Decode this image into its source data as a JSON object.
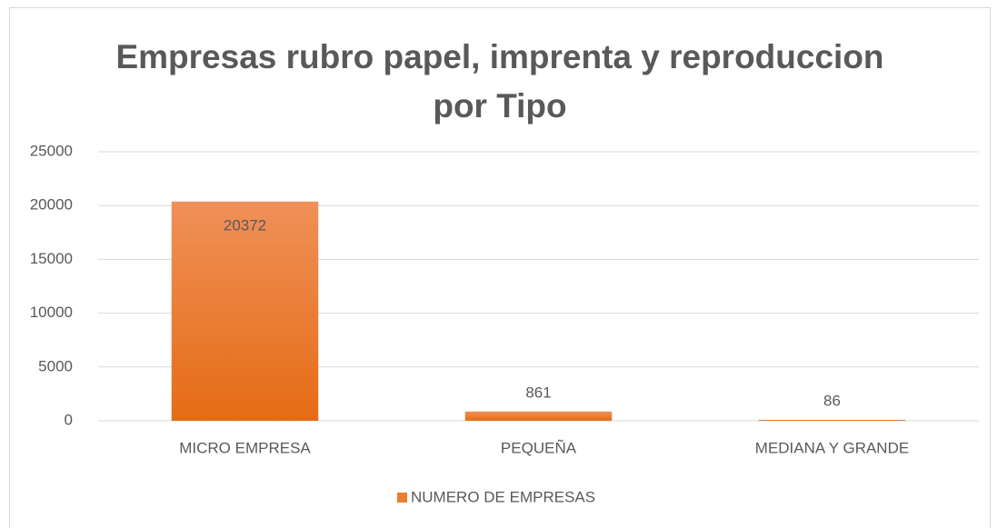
{
  "chart_data": {
    "type": "bar",
    "title": "Empresas rubro papel, imprenta y reproduccion por Tipo",
    "categories": [
      "MICRO EMPRESA",
      "PEQUEÑA",
      "MEDIANA Y GRANDE"
    ],
    "series": [
      {
        "name": "NUMERO DE EMPRESAS",
        "color": "#ed7d31",
        "values": [
          20372,
          861,
          86
        ]
      }
    ],
    "ylim": [
      0,
      25000
    ],
    "yticks": [
      0,
      5000,
      10000,
      15000,
      20000,
      25000
    ],
    "grid": true,
    "legend": "bottom"
  }
}
